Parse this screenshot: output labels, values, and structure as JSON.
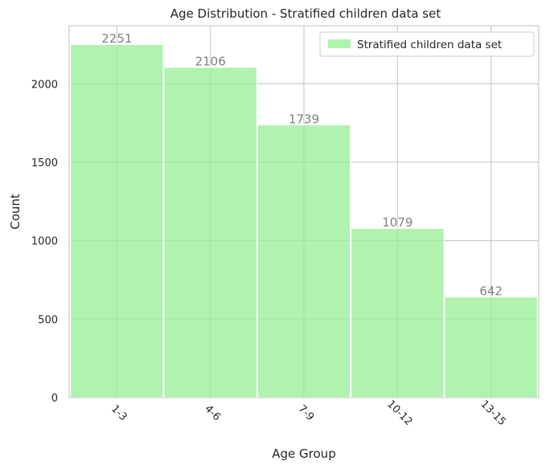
{
  "chart_data": {
    "type": "bar",
    "title": "Age Distribution - Stratified children data set",
    "xlabel": "Age Group",
    "ylabel": "Count",
    "categories": [
      "1-3",
      "4-6",
      "7-9",
      "10-12",
      "13-15"
    ],
    "series": [
      {
        "name": "Stratified children data set",
        "values": [
          2251,
          2106,
          1739,
          1079,
          642
        ]
      }
    ],
    "ylim": [
      0,
      2370
    ],
    "yticks": [
      0,
      500,
      1000,
      1500,
      2000
    ],
    "grid": true,
    "legend_position": "top-right",
    "bar_color": "#90EE90",
    "data_label_color": "#808080"
  }
}
